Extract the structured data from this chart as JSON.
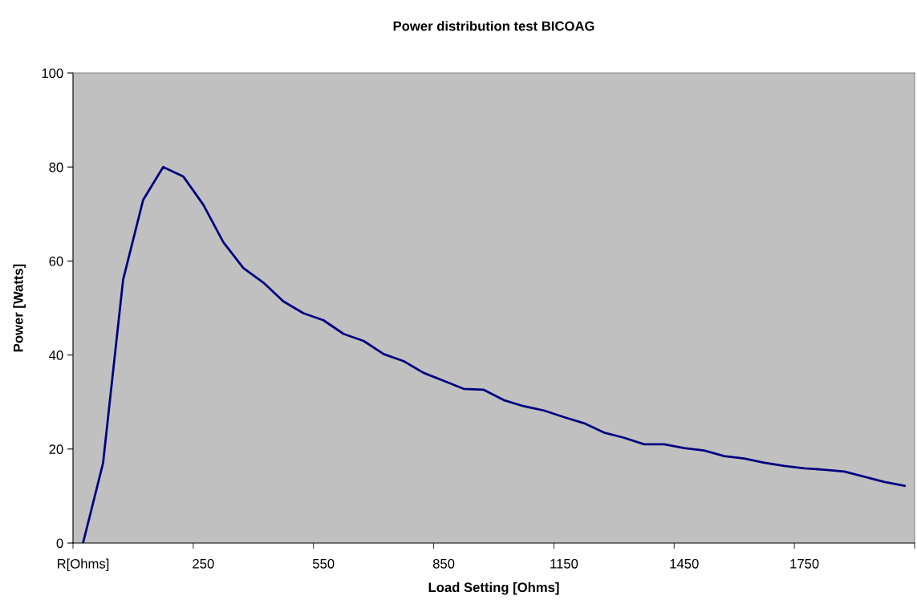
{
  "chart_data": {
    "type": "line",
    "title": "Power distribution test BICOAG",
    "xlabel": "Load Setting [Ohms]",
    "ylabel": "Power [Watts]",
    "categories": [
      "R[Ohms]",
      null,
      null,
      null,
      null,
      null,
      "250",
      null,
      null,
      null,
      null,
      null,
      "550",
      null,
      null,
      null,
      null,
      null,
      "850",
      null,
      null,
      null,
      null,
      null,
      "1150",
      null,
      null,
      null,
      null,
      null,
      "1450",
      null,
      null,
      null,
      null,
      null,
      "1750",
      null,
      null,
      null,
      null,
      null
    ],
    "series": [
      {
        "color": "#000080",
        "values": [
          0,
          17,
          56,
          73,
          80,
          78,
          72,
          64,
          58.5,
          55.4,
          51.4,
          48.9,
          47.4,
          44.5,
          43,
          40.2,
          38.7,
          36.2,
          34.5,
          32.8,
          32.6,
          30.4,
          29.1,
          28.2,
          26.8,
          25.5,
          23.5,
          22.4,
          21,
          21,
          20.2,
          19.7,
          18.5,
          18,
          17.1,
          16.4,
          15.9,
          15.6,
          15.2,
          14.1,
          13,
          12.2
        ]
      }
    ],
    "ylim": [
      0,
      100
    ],
    "yticks": [
      0,
      20,
      40,
      60,
      80,
      100
    ],
    "grid": false,
    "legend": false,
    "marker": "none",
    "line_style": "solid"
  }
}
